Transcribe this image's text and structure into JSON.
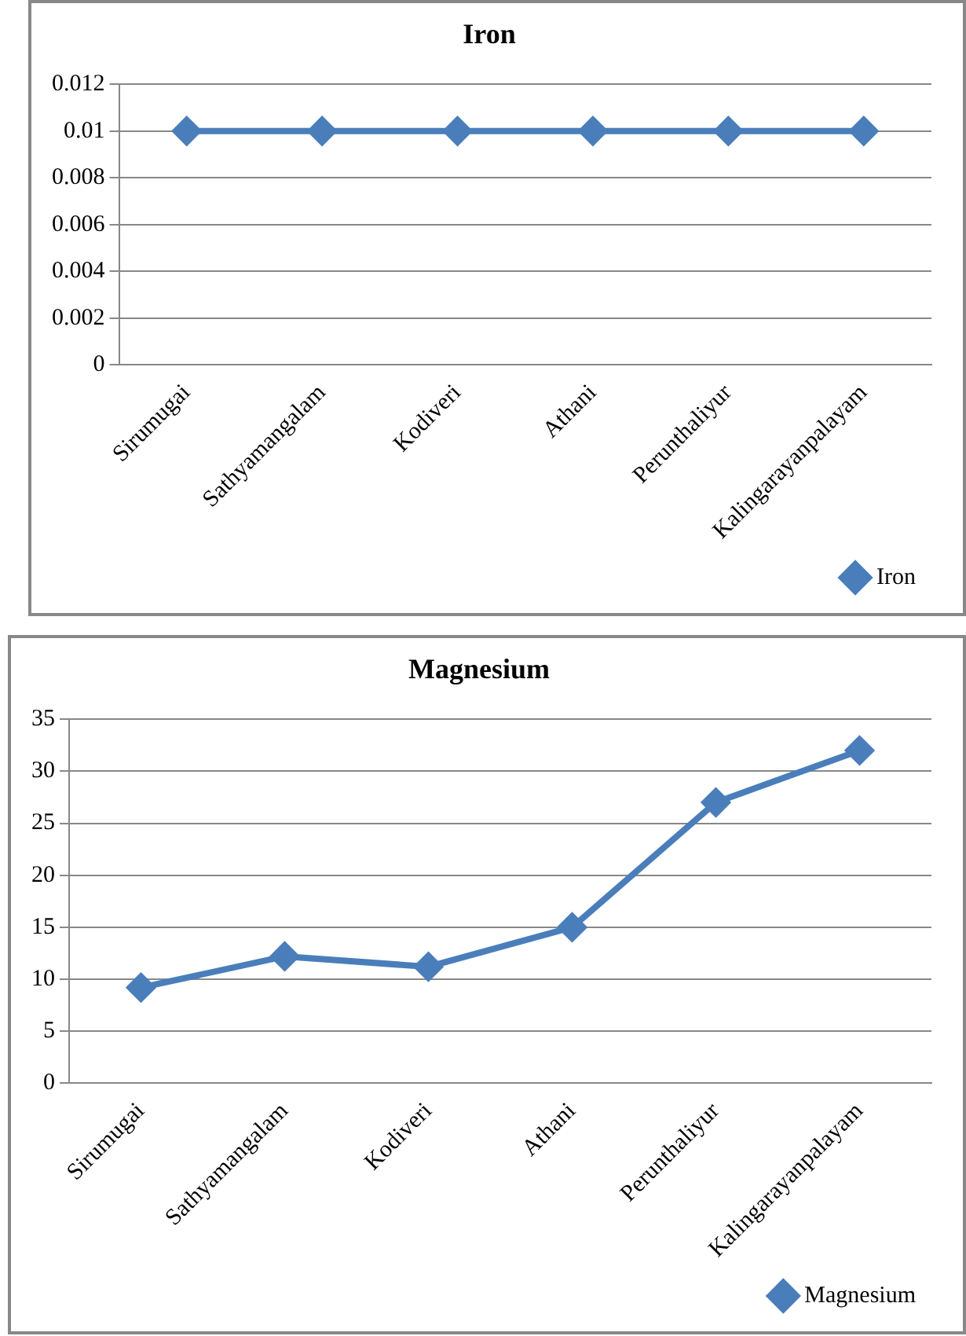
{
  "chart_data": [
    {
      "type": "line",
      "title": "Iron",
      "categories": [
        "Sirumugai",
        "Sathyamangalam",
        "Kodiveri",
        "Athani",
        "Perunthaliyur",
        "Kalingarayanpalayam"
      ],
      "series": [
        {
          "name": "Iron",
          "color": "#4a7ebb",
          "values": [
            0.01,
            0.01,
            0.01,
            0.01,
            0.01,
            0.01
          ]
        }
      ],
      "ylim": [
        0,
        0.012
      ],
      "yticks": [
        0,
        0.002,
        0.004,
        0.006,
        0.008,
        0.01,
        0.012
      ],
      "grid": "y",
      "legend": "bottom right",
      "marker": "diamond",
      "line_style": "solid"
    },
    {
      "type": "line",
      "title": "Magnesium",
      "categories": [
        "Sirumugai",
        "Sathyamangalam",
        "Kodiveri",
        "Athani",
        "Perunthaliyur",
        "Kalingarayanpalayam"
      ],
      "series": [
        {
          "name": "Magnesium",
          "color": "#4a7ebb",
          "values": [
            9.2,
            12.2,
            11.2,
            15,
            27,
            32
          ]
        }
      ],
      "ylim": [
        0,
        35
      ],
      "yticks": [
        0,
        5,
        10,
        15,
        20,
        25,
        30,
        35
      ],
      "grid": "y",
      "legend": "bottom right",
      "marker": "diamond",
      "line_style": "solid"
    }
  ]
}
